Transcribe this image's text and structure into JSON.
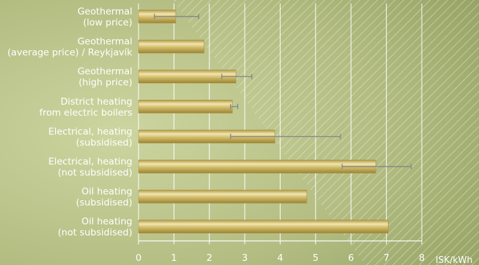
{
  "chart_data": {
    "type": "bar",
    "orientation": "horizontal",
    "categories": [
      [
        "Geothermal",
        "(low price)"
      ],
      [
        "Geothermal",
        "(average price) / Reykjavík"
      ],
      [
        "Geothermal",
        "(high price)"
      ],
      [
        "District heating",
        "from electric boilers"
      ],
      [
        "Electrical, heating",
        "(subsidised)"
      ],
      [
        "Electrical, heating",
        "(not subsidised)"
      ],
      [
        "Oil heating",
        "(subsidised)"
      ],
      [
        "Oil heating",
        "(not subsidised)"
      ]
    ],
    "values": [
      1.05,
      1.85,
      2.75,
      2.65,
      3.85,
      6.7,
      4.75,
      7.05
    ],
    "error_ranges": [
      [
        0.45,
        1.7
      ],
      null,
      [
        2.35,
        3.2
      ],
      [
        2.6,
        2.8
      ],
      [
        2.6,
        5.7
      ],
      [
        5.75,
        7.7
      ],
      null,
      null
    ],
    "xlim": [
      0,
      8
    ],
    "xticks": [
      "0",
      "1",
      "2",
      "3",
      "4",
      "5",
      "6",
      "7",
      "8"
    ],
    "xlabel": "ISK/kWh",
    "grid": "vertical",
    "colors": {
      "bar": "#d2be6c",
      "bar_highlight": "#f1e6b0",
      "bar_shadow": "#a98f3c",
      "error_bar": "#888888",
      "grid": "#ffffff",
      "text": "#ffffff"
    }
  }
}
